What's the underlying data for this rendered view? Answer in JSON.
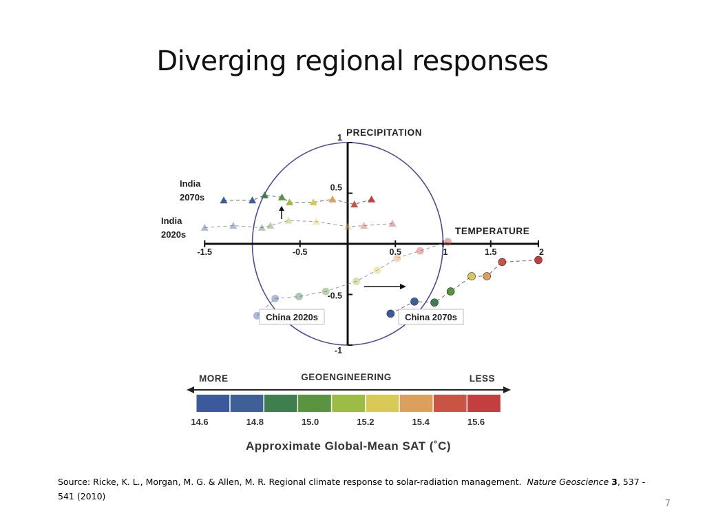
{
  "slide": {
    "title": "Diverging regional responses",
    "page_number": "7",
    "source": {
      "prefix": "Source: Ricke, K. L., Morgan, M. G. & Allen, M. R. Regional climate response to solar-radiation management.",
      "journal": "Nature Geoscience",
      "volume": "3",
      "pages_year": ", 537 - 541 (2010)"
    }
  },
  "chart_data": {
    "type": "scatter",
    "xlabel": "TEMPERATURE",
    "ylabel": "PRECIPITATION",
    "xlim": [
      -1.5,
      2
    ],
    "ylim": [
      -1,
      1
    ],
    "x_ticks": [
      "-1.5",
      "-0.5",
      "0.5",
      "1",
      "1.5",
      "2"
    ],
    "y_ticks": [
      "1",
      "0.5",
      "-0.5",
      "-1"
    ],
    "unit_circle": true,
    "series": [
      {
        "name": "India 2070s",
        "label_lines": [
          "India",
          "2070s"
        ],
        "marker": "triangle",
        "x": [
          -1.3,
          -1.0,
          -0.87,
          -0.69,
          -0.61,
          -0.36,
          -0.16,
          0.07,
          0.25
        ],
        "y": [
          0.43,
          0.43,
          0.48,
          0.46,
          0.41,
          0.41,
          0.44,
          0.39,
          0.44
        ],
        "faded": false
      },
      {
        "name": "India 2020s",
        "label_lines": [
          "India",
          "2020s"
        ],
        "marker": "triangle",
        "x": [
          -1.5,
          -1.2,
          -0.9,
          -0.81,
          -0.62,
          -0.33,
          0.0,
          0.17,
          0.47
        ],
        "y": [
          0.16,
          0.18,
          0.16,
          0.18,
          0.23,
          0.22,
          0.17,
          0.18,
          0.2
        ],
        "faded": true
      },
      {
        "name": "China 2020s",
        "label": "China 2020s",
        "marker": "circle",
        "x": [
          -0.95,
          -0.76,
          -0.51,
          -0.23,
          0.09,
          0.31,
          0.52,
          0.76,
          1.05
        ],
        "y": [
          -0.71,
          -0.54,
          -0.52,
          -0.47,
          -0.37,
          -0.26,
          -0.14,
          -0.07,
          0.02
        ],
        "faded": true
      },
      {
        "name": "China 2070s",
        "label": "China 2070s",
        "marker": "circle",
        "x": [
          0.45,
          0.7,
          0.91,
          1.08,
          1.3,
          1.46,
          1.62,
          2.0
        ],
        "y": [
          -0.69,
          -0.57,
          -0.58,
          -0.47,
          -0.32,
          -0.32,
          -0.18,
          -0.16
        ],
        "faded": false
      }
    ],
    "colorbar": {
      "title": "GEOENGINEERING",
      "left_label": "MORE",
      "right_label": "LESS",
      "colors": [
        "#3c5a9b",
        "#3f6096",
        "#3f7f4f",
        "#5a9440",
        "#9cbc45",
        "#d8c959",
        "#dca05c",
        "#c85444",
        "#c43e3f"
      ],
      "tick_labels": [
        "14.6",
        "14.8",
        "15.0",
        "15.2",
        "15.4",
        "15.6"
      ],
      "xlabel": "Approximate Global-Mean SAT (˚C)"
    },
    "colors": {
      "axis": "#111111",
      "circle": "#4a4a9c",
      "dashes": "#666666"
    }
  }
}
